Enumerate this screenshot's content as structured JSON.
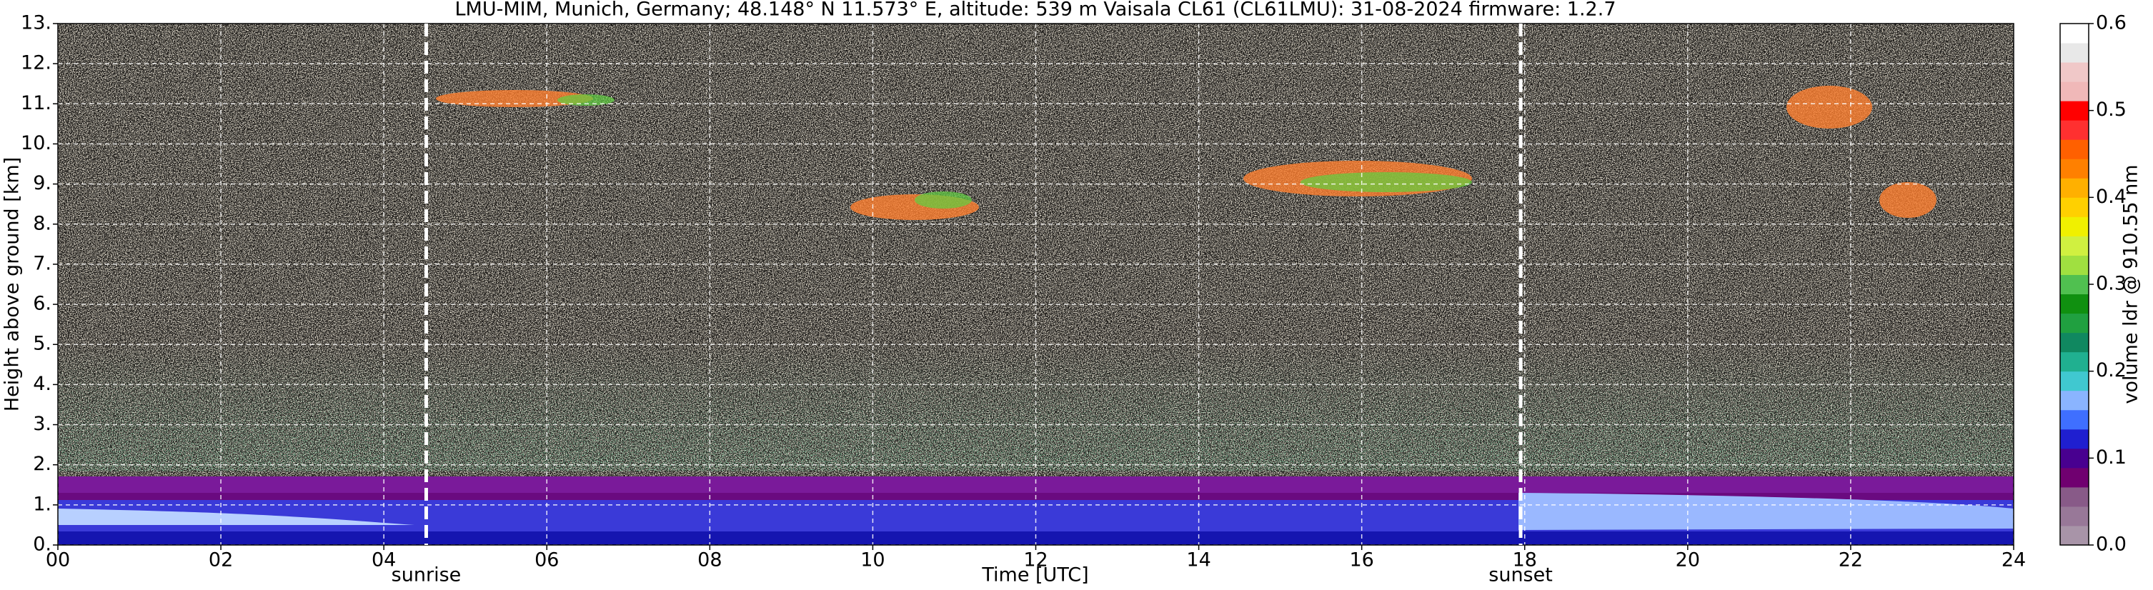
{
  "chart_data": {
    "type": "heatmap",
    "title": "LMU-MIM, Munich, Germany; 48.148° N 11.573° E, altitude: 539 m    Vaisala CL61 (CL61LMU): 31-08-2024    firmware: 1.2.7",
    "x_label": "Time [UTC]",
    "y_label": "Height above ground [km]",
    "xlim": [
      0,
      24
    ],
    "xticks": [
      {
        "value": 0,
        "label": "00"
      },
      {
        "value": 2,
        "label": "02"
      },
      {
        "value": 4,
        "label": "04"
      },
      {
        "value": 6,
        "label": "06"
      },
      {
        "value": 8,
        "label": "08"
      },
      10,
      12,
      14,
      16,
      18,
      20,
      22,
      24
    ],
    "ylim": [
      0,
      13
    ],
    "yticks": [
      {
        "value": 0,
        "label": "0."
      },
      {
        "value": 1,
        "label": "1."
      },
      {
        "value": 2,
        "label": "2."
      },
      {
        "value": 3,
        "label": "3."
      },
      {
        "value": 4,
        "label": "4."
      },
      {
        "value": 5,
        "label": "5."
      },
      {
        "value": 6,
        "label": "6."
      },
      {
        "value": 7,
        "label": "7."
      },
      {
        "value": 8,
        "label": "8."
      },
      {
        "value": 9,
        "label": "9."
      },
      {
        "value": 10,
        "label": "10."
      },
      {
        "value": 11,
        "label": "11."
      },
      {
        "value": 12,
        "label": "12."
      },
      {
        "value": 13,
        "label": "13."
      }
    ],
    "grid": true,
    "annotations": [
      {
        "text": "sunrise",
        "x": 4.52
      },
      {
        "text": "sunset",
        "x": 17.95
      }
    ],
    "colorbar": {
      "label": "volume ldr @ 910.55 nm",
      "lim": [
        0,
        0.6
      ],
      "ticks": [
        {
          "value": 0,
          "label": "0.0"
        },
        0.1,
        0.2,
        0.3,
        0.4,
        0.5,
        0.6
      ],
      "colors": [
        "#a894a8",
        "#987898",
        "#885a88",
        "#700070",
        "#480090",
        "#1f1fd0",
        "#3f6fff",
        "#8ab4ff",
        "#40c8d0",
        "#20b090",
        "#108860",
        "#20a040",
        "#109010",
        "#50c050",
        "#a0e040",
        "#d0f040",
        "#f0f000",
        "#ffd000",
        "#ffb000",
        "#ff8000",
        "#ff6000",
        "#ff3030",
        "#ff0000",
        "#f0b8b8",
        "#f0c8c8",
        "#e8e8e8",
        "#ffffff"
      ]
    }
  }
}
